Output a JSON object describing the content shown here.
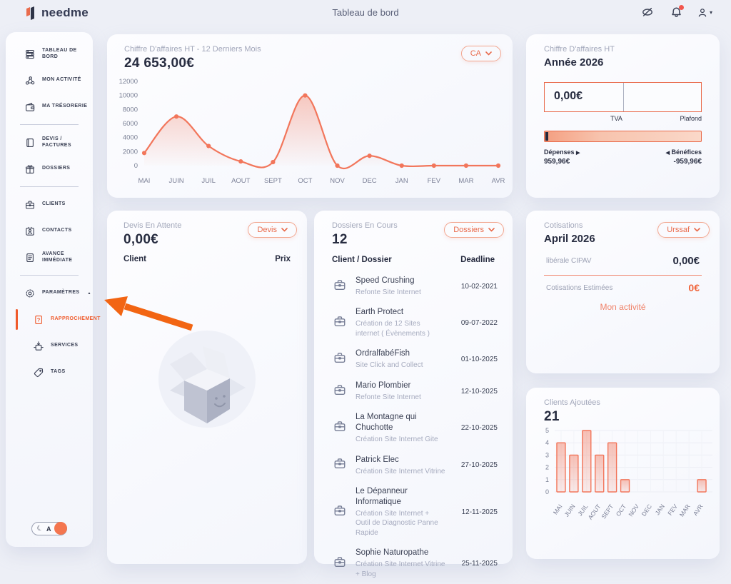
{
  "topbar": {
    "logo_text": "needme",
    "title": "Tableau de bord",
    "icons": [
      "hidden-eye-icon",
      "bell-icon",
      "user-icon"
    ]
  },
  "sidebar": {
    "items": [
      {
        "type": "item",
        "icon": "dashboard-icon",
        "label": "TABLEAU DE BORD"
      },
      {
        "type": "item",
        "icon": "activity-icon",
        "label": "MON ACTIVITÉ"
      },
      {
        "type": "item",
        "icon": "wallet-icon",
        "label": "MA TRÉSORERIE"
      },
      {
        "type": "divider"
      },
      {
        "type": "item",
        "icon": "invoice-icon",
        "label": "DEVIS / FACTURES"
      },
      {
        "type": "item",
        "icon": "gift-icon",
        "label": "DOSSIERS"
      },
      {
        "type": "divider"
      },
      {
        "type": "item",
        "icon": "briefcase-icon",
        "label": "CLIENTS"
      },
      {
        "type": "item",
        "icon": "contact-card-icon",
        "label": "CONTACTS"
      },
      {
        "type": "item",
        "icon": "document-icon",
        "label": "AVANCE IMMÉDIATE"
      },
      {
        "type": "divider"
      },
      {
        "type": "item",
        "icon": "gear-icon",
        "label": "PARAMÈTRES",
        "caret": true
      },
      {
        "type": "item",
        "icon": "file-question-icon",
        "label": "RAPPROCHEMENT",
        "active": true,
        "sub": true
      },
      {
        "type": "item",
        "icon": "services-icon",
        "label": "SERVICES",
        "sub": true
      },
      {
        "type": "item",
        "icon": "tag-icon",
        "label": "TAGS",
        "sub": true
      }
    ],
    "theme_toggle": {
      "letter": "A",
      "moon": "☾"
    }
  },
  "revenue_card": {
    "title": "Chiffre D'affaires HT - 12 Derniers Mois",
    "value": "24 653,00€",
    "filter_label": "CA"
  },
  "year_card": {
    "title": "Chiffre D'affaires HT",
    "subtitle": "Année 2026",
    "tva_value": "0,00€",
    "tva_label": "TVA",
    "plafond_label": "Plafond",
    "depenses_label": "Dépenses",
    "depenses_value": "959,96€",
    "benefices_label": "Bénéfices",
    "benefices_value": "-959,96€"
  },
  "devis_card": {
    "title": "Devis En Attente",
    "value": "0,00€",
    "filter_label": "Devis",
    "col_client": "Client",
    "col_prix": "Prix"
  },
  "dossiers_card": {
    "title": "Dossiers En Cours",
    "value": "12",
    "filter_label": "Dossiers",
    "col_client": "Client / Dossier",
    "col_deadline": "Deadline",
    "rows": [
      {
        "client": "Speed Crushing",
        "dossier": "Refonte Site Internet",
        "deadline": "10-02-2021"
      },
      {
        "client": "Earth Protect",
        "dossier": "Création de 12 Sites internet ( Évènements )",
        "deadline": "09-07-2022"
      },
      {
        "client": "OrdralfabéFish",
        "dossier": "Site Click and Collect",
        "deadline": "01-10-2025"
      },
      {
        "client": "Mario Plombier",
        "dossier": "Refonte Site Internet",
        "deadline": "12-10-2025"
      },
      {
        "client": "La Montagne qui Chuchotte",
        "dossier": "Création Site Internet Gite",
        "deadline": "22-10-2025"
      },
      {
        "client": "Patrick Elec",
        "dossier": "Création Site Internet Vitrine",
        "deadline": "27-10-2025"
      },
      {
        "client": "Le Dépanneur Informatique",
        "dossier": "Création Site Internet + Outil de Diagnostic Panne Rapide",
        "deadline": "12-11-2025"
      },
      {
        "client": "Sophie Naturopathe",
        "dossier": "Création Site Internet Vitrine + Blog",
        "deadline": "25-11-2025"
      }
    ]
  },
  "cotisations_card": {
    "title": "Cotisations",
    "subtitle": "April 2026",
    "filter_label": "Urssaf",
    "row1_label": "libérale CIPAV",
    "row1_value": "0,00€",
    "row2_label": "Cotisations Estimées",
    "row2_value": "0€",
    "link_label": "Mon activité"
  },
  "clients_card": {
    "title": "Clients Ajoutées",
    "value": "21"
  },
  "colors": {
    "accent": "#E96B4C",
    "chart_orange": "#F2765B",
    "arrow_orange": "#F26513",
    "notification_red": "#F2564D",
    "toggle_knob": "#F4764F"
  },
  "chart_data": [
    {
      "type": "line",
      "title": "Chiffre D'affaires HT - 12 Derniers Mois",
      "categories": [
        "MAI",
        "JUIN",
        "JUIL",
        "AOUT",
        "SEPT",
        "OCT",
        "NOV",
        "DEC",
        "JAN",
        "FEV",
        "MAR",
        "AVR"
      ],
      "values": [
        1800,
        7000,
        2800,
        600,
        500,
        10000,
        0,
        1400,
        0,
        0,
        0,
        0
      ],
      "ylim": [
        0,
        12000
      ],
      "yticks": [
        0,
        2000,
        4000,
        6000,
        8000,
        10000,
        12000
      ],
      "grid": false,
      "line_color": "#F2765B"
    },
    {
      "type": "bar",
      "title": "Clients Ajoutées",
      "categories": [
        "MAI",
        "JUIN",
        "JUIL",
        "AOUT",
        "SEPT",
        "OCT",
        "NOV",
        "DEC",
        "JAN",
        "FEV",
        "MAR",
        "AVR"
      ],
      "values": [
        4,
        3,
        5,
        3,
        4,
        1,
        0,
        0,
        0,
        0,
        0,
        1
      ],
      "ylim": [
        0,
        5
      ],
      "yticks": [
        0,
        1,
        2,
        3,
        4,
        5
      ],
      "grid": true,
      "bar_color": "#F2765B"
    }
  ]
}
